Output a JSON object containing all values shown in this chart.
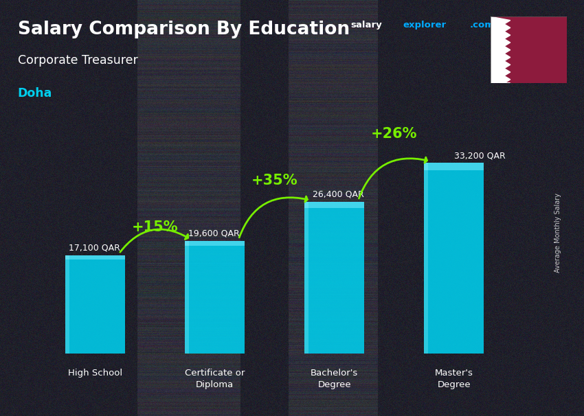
{
  "title": "Salary Comparison By Education",
  "subtitle": "Corporate Treasurer",
  "city": "Doha",
  "ylabel": "Average Monthly Salary",
  "categories": [
    "High School",
    "Certificate or\nDiploma",
    "Bachelor's\nDegree",
    "Master's\nDegree"
  ],
  "values": [
    17100,
    19600,
    26400,
    33200
  ],
  "value_labels": [
    "17,100 QAR",
    "19,600 QAR",
    "26,400 QAR",
    "33,200 QAR"
  ],
  "pct_labels": [
    "+15%",
    "+35%",
    "+26%"
  ],
  "bar_color": "#00CFEE",
  "pct_color": "#77EE00",
  "title_color": "#FFFFFF",
  "subtitle_color": "#FFFFFF",
  "city_color": "#00CFEE",
  "value_color": "#FFFFFF",
  "bg_color": "#2a2a3a",
  "brand_salary_color": "#FFFFFF",
  "brand_explorer_color": "#00AAFF",
  "brand_com_color": "#00AAFF",
  "flag_maroon": "#8D1B3D",
  "ymax": 42000,
  "figsize": [
    8.5,
    6.06
  ],
  "dpi": 100,
  "bar_alpha": 0.88,
  "overlay_alpha": 0.62
}
